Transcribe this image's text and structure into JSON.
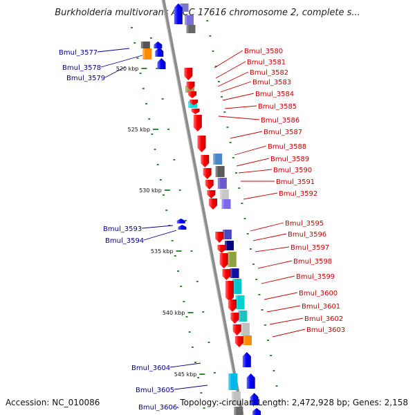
{
  "title": "Burkholderia multivorans ATCC 17616 chromosome 2, complete s...",
  "accession": "Accession: NC_010086",
  "topology": "Topology: circular; Length: 2,472,928 bp; Genes: 2,158",
  "colors": {
    "backbone": "#8c8c8c",
    "forward_label": "#00008b",
    "reverse_label": "#cc0000",
    "tick": "#2e8b2e"
  },
  "scale_labels": [
    "520 kbp",
    "525 kbp",
    "530 kbp",
    "535 kbp",
    "540 kbp",
    "545 kbp"
  ],
  "forward_genes": [
    "Bmul_3577",
    "Bmul_3578",
    "Bmul_3579",
    "Bmul_3593",
    "Bmul_3594",
    "Bmul_3604",
    "Bmul_3605",
    "Bmul_3606"
  ],
  "reverse_genes": [
    "Bmul_3580",
    "Bmul_3581",
    "Bmul_3582",
    "Bmul_3583",
    "Bmul_3584",
    "Bmul_3585",
    "Bmul_3586",
    "Bmul_3587",
    "Bmul_3588",
    "Bmul_3589",
    "Bmul_3590",
    "Bmul_3591",
    "Bmul_3592",
    "Bmul_3595",
    "Bmul_3596",
    "Bmul_3597",
    "Bmul_3598",
    "Bmul_3599",
    "Bmul_3600",
    "Bmul_3601",
    "Bmul_3602",
    "Bmul_3603"
  ]
}
